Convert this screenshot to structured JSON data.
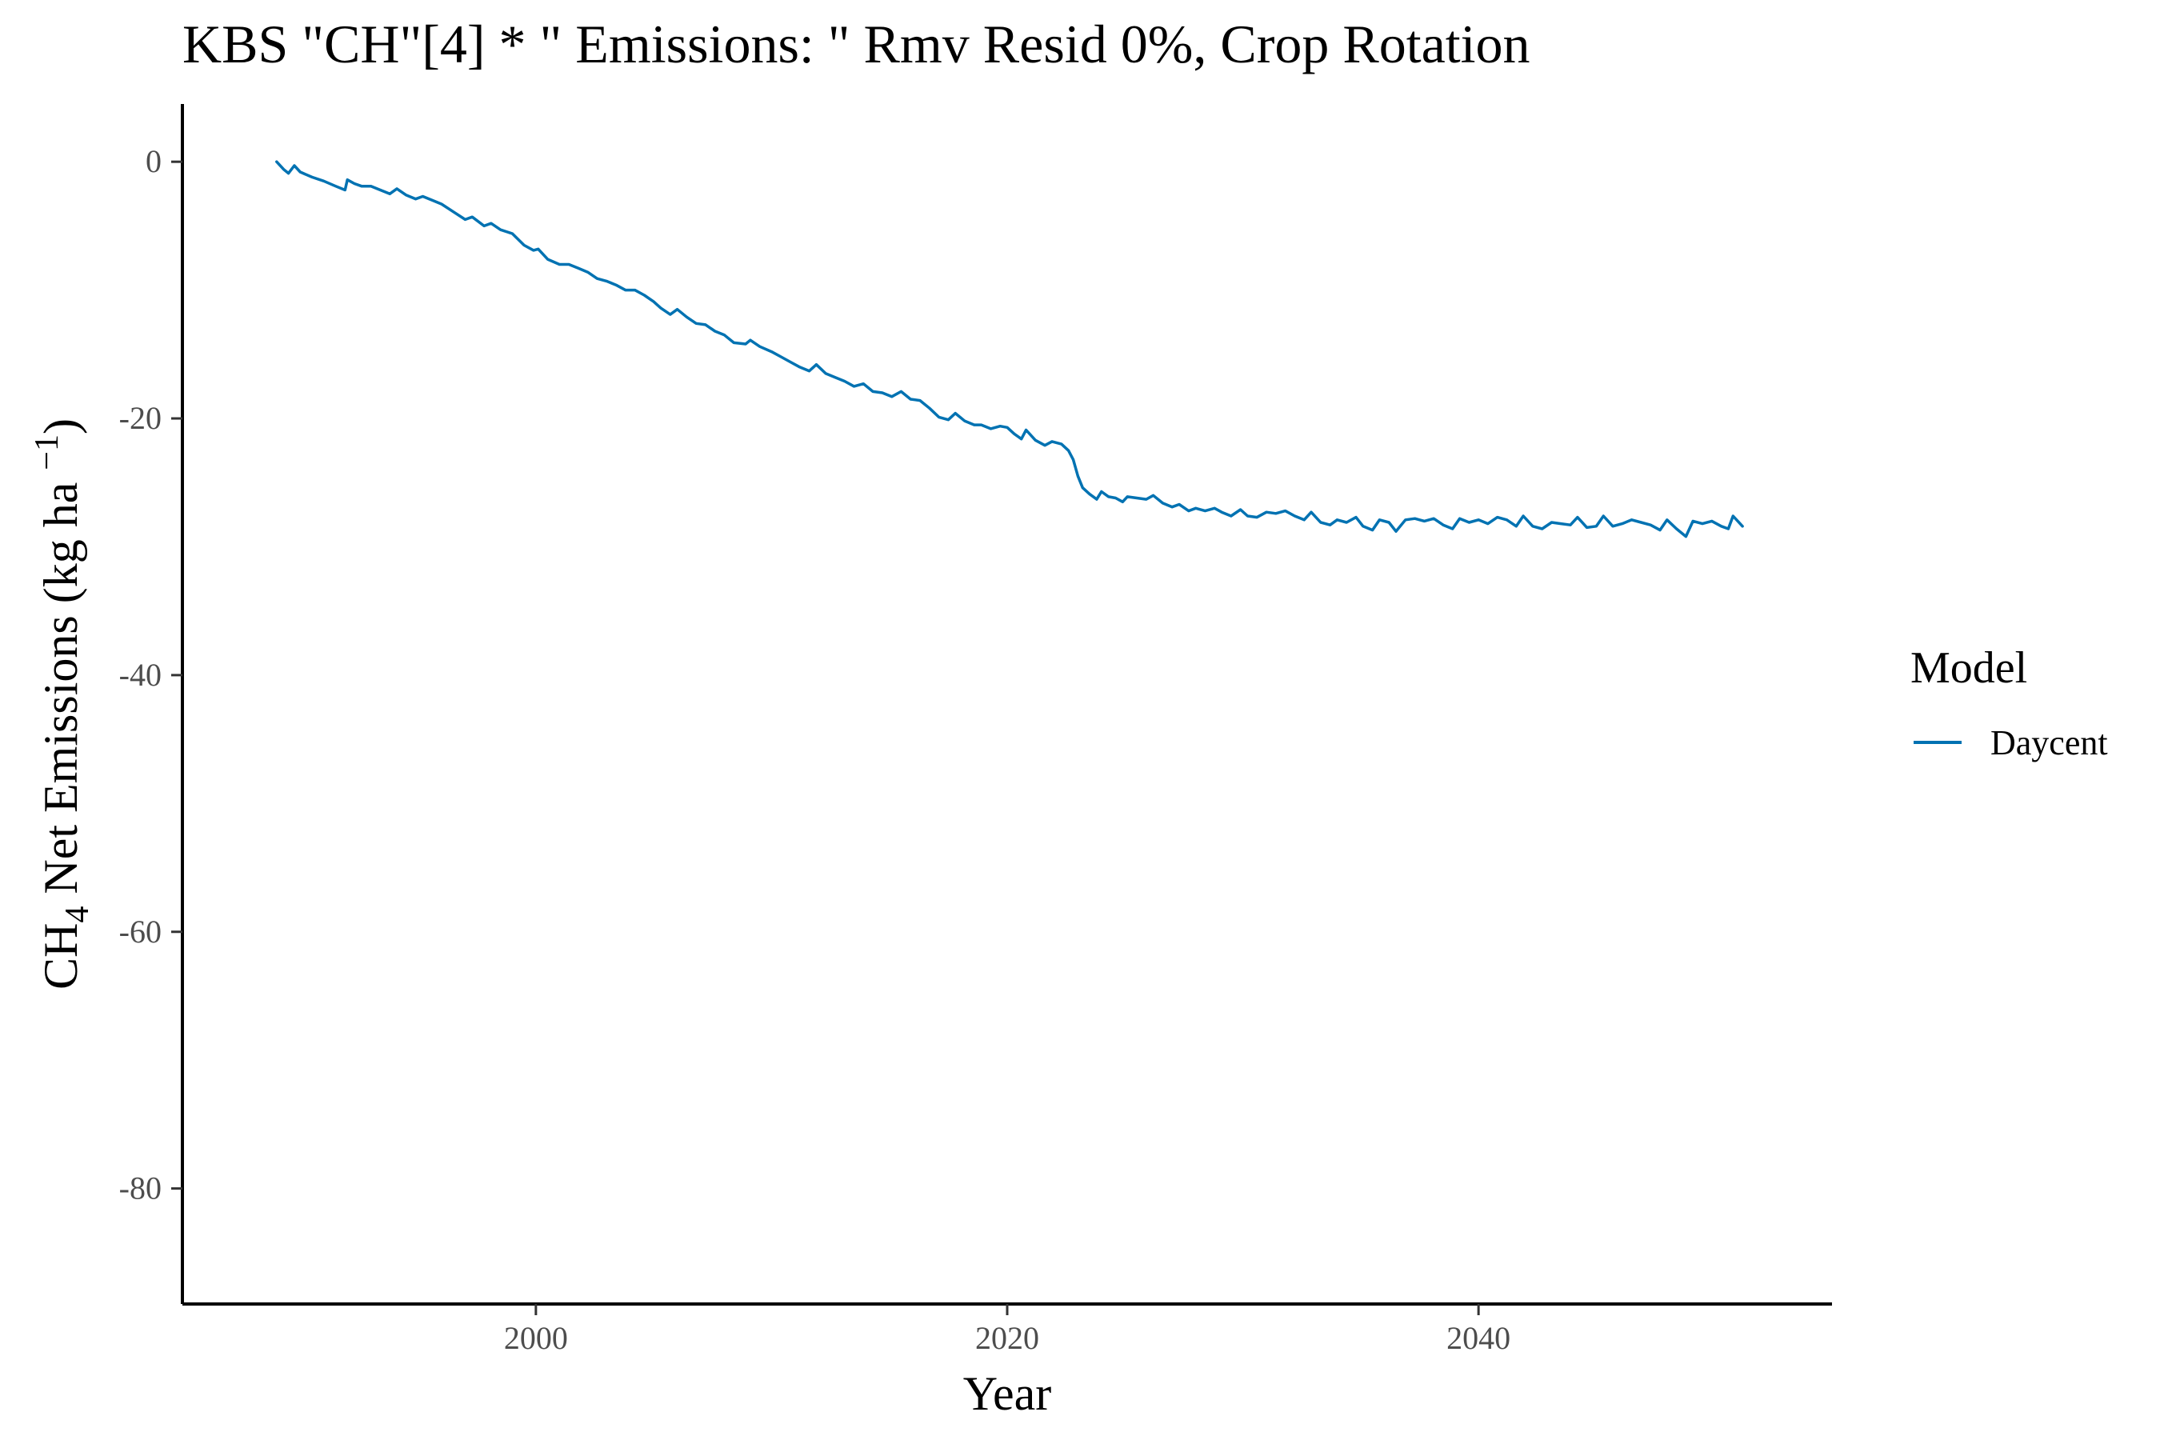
{
  "chart_data": {
    "type": "line",
    "title": "KBS \"CH\"[4] * \" Emissions: \" Rmv Resid 0%, Crop Rotation",
    "xlabel": "Year",
    "ylabel": {
      "prefix": "CH",
      "sub": "4",
      "middle": " Net Emissions (kg ha ",
      "sup": "−1",
      "suffix": ")"
    },
    "xlim": [
      1985,
      2055
    ],
    "ylim": [
      -89,
      4.5
    ],
    "x_ticks": [
      2000,
      2020,
      2040
    ],
    "y_ticks": [
      0,
      -20,
      -40,
      -60,
      -80
    ],
    "grid": false,
    "legend": {
      "title": "Model",
      "position": "right"
    },
    "series": [
      {
        "name": "Daycent",
        "color": "#0072B2",
        "points": [
          [
            1989.0,
            0.0
          ],
          [
            1989.3,
            -0.6
          ],
          [
            1989.5,
            -0.9
          ],
          [
            1989.75,
            -0.3
          ],
          [
            1990.0,
            -0.8
          ],
          [
            1990.5,
            -1.2
          ],
          [
            1991.0,
            -1.5
          ],
          [
            1991.5,
            -1.9
          ],
          [
            1991.9,
            -2.2
          ],
          [
            1992.0,
            -1.4
          ],
          [
            1992.3,
            -1.7
          ],
          [
            1992.6,
            -1.9
          ],
          [
            1993.0,
            -1.9
          ],
          [
            1993.4,
            -2.2
          ],
          [
            1993.8,
            -2.5
          ],
          [
            1994.1,
            -2.1
          ],
          [
            1994.5,
            -2.6
          ],
          [
            1994.9,
            -2.9
          ],
          [
            1995.2,
            -2.7
          ],
          [
            1995.6,
            -3.0
          ],
          [
            1996.0,
            -3.3
          ],
          [
            1996.5,
            -3.9
          ],
          [
            1997.0,
            -4.5
          ],
          [
            1997.3,
            -4.3
          ],
          [
            1997.8,
            -5.0
          ],
          [
            1998.1,
            -4.8
          ],
          [
            1998.5,
            -5.3
          ],
          [
            1999.0,
            -5.6
          ],
          [
            1999.5,
            -6.5
          ],
          [
            1999.9,
            -6.9
          ],
          [
            2000.1,
            -6.8
          ],
          [
            2000.5,
            -7.6
          ],
          [
            2001.0,
            -8.0
          ],
          [
            2001.4,
            -8.0
          ],
          [
            2001.8,
            -8.3
          ],
          [
            2002.2,
            -8.6
          ],
          [
            2002.6,
            -9.1
          ],
          [
            2003.0,
            -9.3
          ],
          [
            2003.4,
            -9.6
          ],
          [
            2003.8,
            -10.0
          ],
          [
            2004.2,
            -10.0
          ],
          [
            2004.6,
            -10.4
          ],
          [
            2005.0,
            -10.9
          ],
          [
            2005.3,
            -11.4
          ],
          [
            2005.7,
            -11.9
          ],
          [
            2006.0,
            -11.5
          ],
          [
            2006.4,
            -12.1
          ],
          [
            2006.8,
            -12.6
          ],
          [
            2007.2,
            -12.7
          ],
          [
            2007.6,
            -13.2
          ],
          [
            2008.0,
            -13.5
          ],
          [
            2008.4,
            -14.1
          ],
          [
            2008.9,
            -14.2
          ],
          [
            2009.1,
            -13.9
          ],
          [
            2009.5,
            -14.4
          ],
          [
            2010.0,
            -14.8
          ],
          [
            2010.4,
            -15.2
          ],
          [
            2010.8,
            -15.6
          ],
          [
            2011.2,
            -16.0
          ],
          [
            2011.6,
            -16.3
          ],
          [
            2011.9,
            -15.8
          ],
          [
            2012.3,
            -16.5
          ],
          [
            2012.7,
            -16.8
          ],
          [
            2013.1,
            -17.1
          ],
          [
            2013.5,
            -17.5
          ],
          [
            2013.9,
            -17.3
          ],
          [
            2014.3,
            -17.9
          ],
          [
            2014.7,
            -18.0
          ],
          [
            2015.1,
            -18.3
          ],
          [
            2015.5,
            -17.9
          ],
          [
            2015.9,
            -18.5
          ],
          [
            2016.3,
            -18.6
          ],
          [
            2016.7,
            -19.2
          ],
          [
            2017.1,
            -19.9
          ],
          [
            2017.5,
            -20.1
          ],
          [
            2017.8,
            -19.6
          ],
          [
            2018.2,
            -20.2
          ],
          [
            2018.6,
            -20.5
          ],
          [
            2018.9,
            -20.5
          ],
          [
            2019.3,
            -20.8
          ],
          [
            2019.7,
            -20.6
          ],
          [
            2020.0,
            -20.7
          ],
          [
            2020.3,
            -21.2
          ],
          [
            2020.6,
            -21.6
          ],
          [
            2020.8,
            -20.9
          ],
          [
            2021.2,
            -21.7
          ],
          [
            2021.6,
            -22.1
          ],
          [
            2021.9,
            -21.8
          ],
          [
            2022.3,
            -22.0
          ],
          [
            2022.6,
            -22.5
          ],
          [
            2022.8,
            -23.2
          ],
          [
            2023.0,
            -24.5
          ],
          [
            2023.2,
            -25.4
          ],
          [
            2023.5,
            -25.9
          ],
          [
            2023.8,
            -26.3
          ],
          [
            2024.0,
            -25.7
          ],
          [
            2024.3,
            -26.1
          ],
          [
            2024.6,
            -26.2
          ],
          [
            2024.9,
            -26.5
          ],
          [
            2025.1,
            -26.1
          ],
          [
            2025.5,
            -26.2
          ],
          [
            2025.9,
            -26.3
          ],
          [
            2026.2,
            -26.0
          ],
          [
            2026.6,
            -26.6
          ],
          [
            2027.0,
            -26.9
          ],
          [
            2027.3,
            -26.7
          ],
          [
            2027.7,
            -27.2
          ],
          [
            2028.0,
            -27.0
          ],
          [
            2028.4,
            -27.2
          ],
          [
            2028.8,
            -27.0
          ],
          [
            2029.1,
            -27.3
          ],
          [
            2029.5,
            -27.6
          ],
          [
            2029.9,
            -27.1
          ],
          [
            2030.2,
            -27.6
          ],
          [
            2030.6,
            -27.7
          ],
          [
            2031.0,
            -27.3
          ],
          [
            2031.4,
            -27.4
          ],
          [
            2031.8,
            -27.2
          ],
          [
            2032.2,
            -27.6
          ],
          [
            2032.6,
            -27.9
          ],
          [
            2032.9,
            -27.3
          ],
          [
            2033.3,
            -28.1
          ],
          [
            2033.7,
            -28.3
          ],
          [
            2034.0,
            -27.9
          ],
          [
            2034.4,
            -28.1
          ],
          [
            2034.8,
            -27.7
          ],
          [
            2035.1,
            -28.4
          ],
          [
            2035.5,
            -28.7
          ],
          [
            2035.8,
            -27.9
          ],
          [
            2036.2,
            -28.1
          ],
          [
            2036.5,
            -28.8
          ],
          [
            2036.9,
            -27.9
          ],
          [
            2037.3,
            -27.8
          ],
          [
            2037.7,
            -28.0
          ],
          [
            2038.1,
            -27.8
          ],
          [
            2038.5,
            -28.3
          ],
          [
            2038.9,
            -28.6
          ],
          [
            2039.2,
            -27.8
          ],
          [
            2039.6,
            -28.1
          ],
          [
            2040.0,
            -27.9
          ],
          [
            2040.4,
            -28.2
          ],
          [
            2040.8,
            -27.7
          ],
          [
            2041.2,
            -27.9
          ],
          [
            2041.6,
            -28.4
          ],
          [
            2041.9,
            -27.6
          ],
          [
            2042.3,
            -28.4
          ],
          [
            2042.7,
            -28.6
          ],
          [
            2043.1,
            -28.1
          ],
          [
            2043.5,
            -28.2
          ],
          [
            2043.9,
            -28.3
          ],
          [
            2044.2,
            -27.7
          ],
          [
            2044.6,
            -28.5
          ],
          [
            2045.0,
            -28.4
          ],
          [
            2045.3,
            -27.6
          ],
          [
            2045.7,
            -28.4
          ],
          [
            2046.1,
            -28.2
          ],
          [
            2046.5,
            -27.9
          ],
          [
            2046.9,
            -28.1
          ],
          [
            2047.3,
            -28.3
          ],
          [
            2047.7,
            -28.7
          ],
          [
            2048.0,
            -27.9
          ],
          [
            2048.4,
            -28.6
          ],
          [
            2048.8,
            -29.2
          ],
          [
            2049.1,
            -28.0
          ],
          [
            2049.5,
            -28.2
          ],
          [
            2049.9,
            -28.0
          ],
          [
            2050.3,
            -28.4
          ],
          [
            2050.6,
            -28.6
          ],
          [
            2050.8,
            -27.6
          ],
          [
            2051.2,
            -28.4
          ]
        ]
      }
    ]
  }
}
